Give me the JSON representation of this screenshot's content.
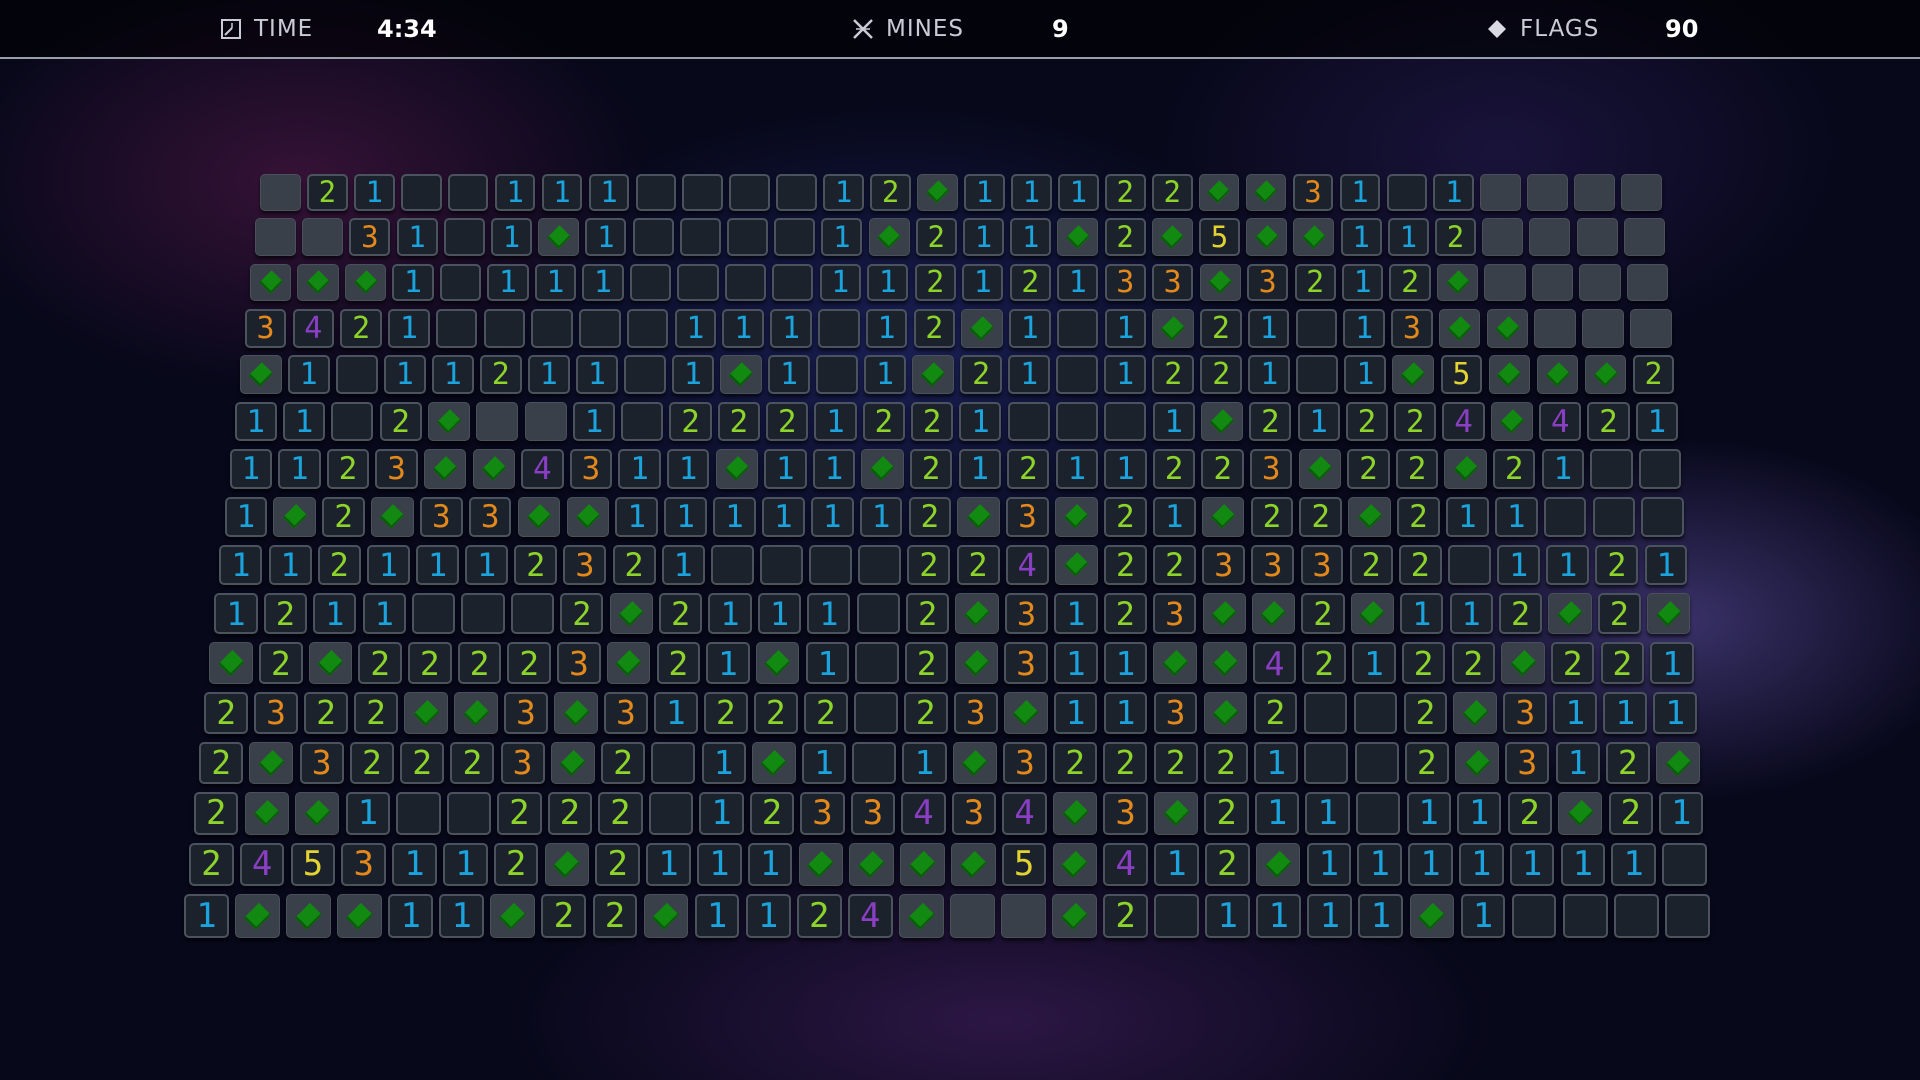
{
  "hud": {
    "time_label": "TIME",
    "time_value": "4:34",
    "mines_label": "MINES",
    "mines_value": "9",
    "flags_label": "FLAGS",
    "flags_value": "90",
    "time_icon": "clock-square-icon",
    "mines_icon": "crossed-mine-icon",
    "flags_icon": "diamond-flag-icon"
  },
  "legend": {
    "U": "unrevealed",
    "F": "flag",
    "": "revealed-empty"
  },
  "colors": {
    "1": "#1aa3dc",
    "2": "#8cd42a",
    "3": "#e3891c",
    "4": "#8a3ec4",
    "5": "#e2d232",
    "flag": "#128a12",
    "revealed": "#1b222b",
    "unrevealed": "#3a404a"
  },
  "board": {
    "columns": 30,
    "rows": [
      [
        "U",
        "2",
        "1",
        "",
        "",
        "1",
        "1",
        "1",
        "",
        "",
        "",
        "",
        "1",
        "2",
        "F",
        "1",
        "1",
        "1",
        "2",
        "2",
        "F",
        "F",
        "3",
        "1",
        "",
        "1",
        "U",
        "U",
        "U",
        "U"
      ],
      [
        "U",
        "U",
        "3",
        "1",
        "",
        "1",
        "F",
        "1",
        "",
        "",
        "",
        "",
        "1",
        "F",
        "2",
        "1",
        "1",
        "F",
        "2",
        "F",
        "5",
        "F",
        "F",
        "1",
        "1",
        "2",
        "U",
        "U",
        "U",
        "U"
      ],
      [
        "F",
        "F",
        "F",
        "1",
        "",
        "1",
        "1",
        "1",
        "",
        "",
        "",
        "",
        "1",
        "1",
        "2",
        "1",
        "2",
        "1",
        "3",
        "3",
        "F",
        "3",
        "2",
        "1",
        "2",
        "F",
        "U",
        "U",
        "U",
        "U"
      ],
      [
        "3",
        "4",
        "2",
        "1",
        "",
        "",
        "",
        "",
        "",
        "1",
        "1",
        "1",
        "",
        "1",
        "2",
        "F",
        "1",
        "",
        "1",
        "F",
        "2",
        "1",
        "",
        "1",
        "3",
        "F",
        "F",
        "U",
        "U",
        "U"
      ],
      [
        "F",
        "1",
        "",
        "1",
        "1",
        "2",
        "1",
        "1",
        "",
        "1",
        "F",
        "1",
        "",
        "1",
        "F",
        "2",
        "1",
        "",
        "1",
        "2",
        "2",
        "1",
        "",
        "1",
        "F",
        "5",
        "F",
        "F",
        "F",
        "2"
      ],
      [
        "1",
        "1",
        "",
        "2",
        "F",
        "U",
        "U",
        "1",
        "",
        "2",
        "2",
        "2",
        "1",
        "2",
        "2",
        "1",
        "",
        "",
        "",
        "1",
        "F",
        "2",
        "1",
        "2",
        "2",
        "4",
        "F",
        "4",
        "2",
        "1"
      ],
      [
        "1",
        "1",
        "2",
        "3",
        "F",
        "F",
        "4",
        "3",
        "1",
        "1",
        "F",
        "1",
        "1",
        "F",
        "2",
        "1",
        "2",
        "1",
        "1",
        "2",
        "2",
        "3",
        "F",
        "2",
        "2",
        "F",
        "2",
        "1",
        "",
        ""
      ],
      [
        "1",
        "F",
        "2",
        "F",
        "3",
        "3",
        "F",
        "F",
        "1",
        "1",
        "1",
        "1",
        "1",
        "1",
        "2",
        "F",
        "3",
        "F",
        "2",
        "1",
        "F",
        "2",
        "2",
        "F",
        "2",
        "1",
        "1",
        "",
        "",
        ""
      ],
      [
        "1",
        "1",
        "2",
        "1",
        "1",
        "1",
        "2",
        "3",
        "2",
        "1",
        "",
        "",
        "",
        "",
        "2",
        "2",
        "4",
        "F",
        "2",
        "2",
        "3",
        "3",
        "3",
        "2",
        "2",
        "",
        "1",
        "1",
        "2",
        "1"
      ],
      [
        "1",
        "2",
        "1",
        "1",
        "",
        "",
        "",
        "2",
        "F",
        "2",
        "1",
        "1",
        "1",
        "",
        "2",
        "F",
        "3",
        "1",
        "2",
        "3",
        "F",
        "F",
        "2",
        "F",
        "1",
        "1",
        "2",
        "F",
        "2",
        "F"
      ],
      [
        "F",
        "2",
        "F",
        "2",
        "2",
        "2",
        "2",
        "3",
        "F",
        "2",
        "1",
        "F",
        "1",
        "",
        "2",
        "F",
        "3",
        "1",
        "1",
        "F",
        "F",
        "4",
        "2",
        "1",
        "2",
        "2",
        "F",
        "2",
        "2",
        "1"
      ],
      [
        "2",
        "3",
        "2",
        "2",
        "F",
        "F",
        "3",
        "F",
        "3",
        "1",
        "2",
        "2",
        "2",
        "",
        "2",
        "3",
        "F",
        "1",
        "1",
        "3",
        "F",
        "2",
        "",
        "",
        "2",
        "F",
        "3",
        "1",
        "1",
        "1"
      ],
      [
        "2",
        "F",
        "3",
        "2",
        "2",
        "2",
        "3",
        "F",
        "2",
        "",
        "1",
        "F",
        "1",
        "",
        "1",
        "F",
        "3",
        "2",
        "2",
        "2",
        "2",
        "1",
        "",
        "",
        "2",
        "F",
        "3",
        "1",
        "2",
        "F"
      ],
      [
        "2",
        "F",
        "F",
        "1",
        "",
        "",
        "2",
        "2",
        "2",
        "",
        "1",
        "2",
        "3",
        "3",
        "4",
        "3",
        "4",
        "F",
        "3",
        "F",
        "2",
        "1",
        "1",
        "",
        "1",
        "1",
        "2",
        "F",
        "2",
        "1"
      ],
      [
        "2",
        "4",
        "5",
        "3",
        "1",
        "1",
        "2",
        "F",
        "2",
        "1",
        "1",
        "1",
        "F",
        "F",
        "F",
        "F",
        "5",
        "F",
        "4",
        "1",
        "2",
        "F",
        "1",
        "1",
        "1",
        "1",
        "1",
        "1",
        "1",
        ""
      ],
      [
        "1",
        "F",
        "F",
        "F",
        "1",
        "1",
        "F",
        "2",
        "2",
        "F",
        "1",
        "1",
        "2",
        "4",
        "F",
        "U",
        "U",
        "F",
        "2",
        "",
        "1",
        "1",
        "1",
        "1",
        "F",
        "1",
        "",
        "",
        "",
        ""
      ]
    ]
  }
}
